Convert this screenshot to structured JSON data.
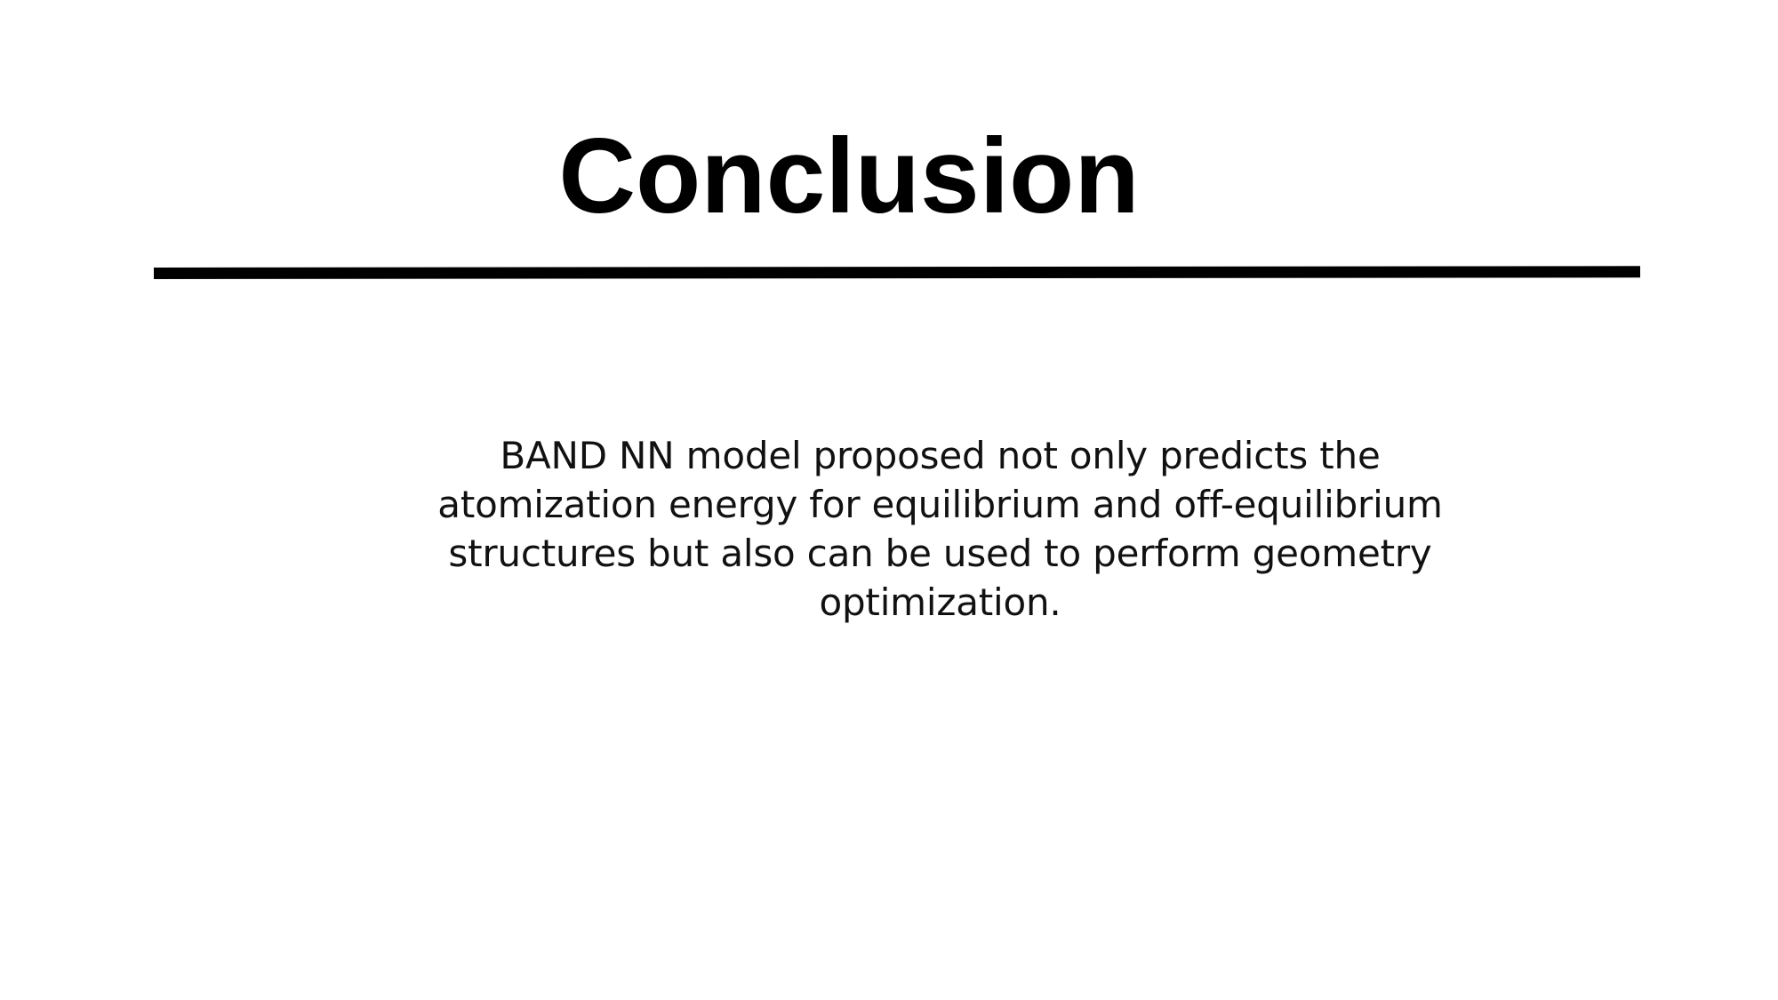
{
  "slide": {
    "title": "Conclusion",
    "body_lines": [
      "BAND NN model proposed not only predicts the",
      "atomization energy for equilibrium and off-equilibrium",
      "structures but also can be used to perform geometry",
      "optimization."
    ]
  }
}
